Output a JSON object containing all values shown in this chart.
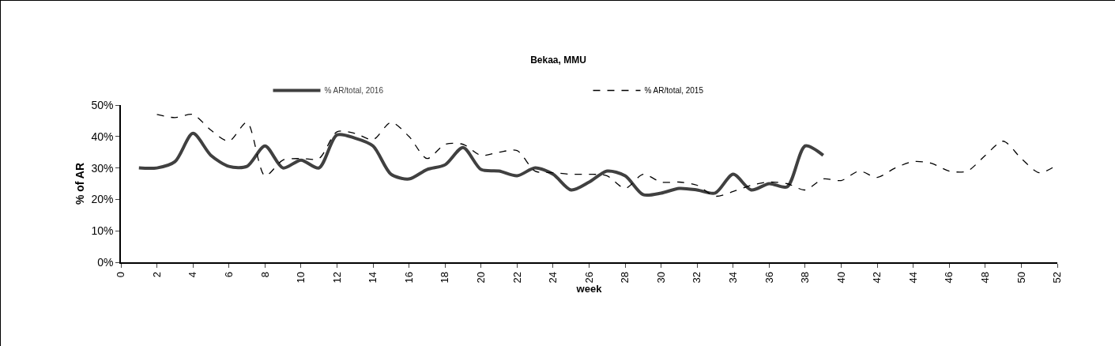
{
  "chart_data": {
    "type": "line",
    "title": "Bekaa, MMU",
    "xlabel": "week",
    "ylabel": "% of AR",
    "xlim": [
      0,
      52
    ],
    "xticks": [
      0,
      2,
      4,
      6,
      8,
      10,
      12,
      14,
      16,
      18,
      20,
      22,
      24,
      26,
      28,
      30,
      32,
      34,
      36,
      38,
      40,
      42,
      44,
      46,
      48,
      50,
      52
    ],
    "ylim": [
      0,
      50
    ],
    "yticks": [
      {
        "value": 0,
        "label": "0%"
      },
      {
        "value": 10,
        "label": "10%"
      },
      {
        "value": 20,
        "label": "20%"
      },
      {
        "value": 30,
        "label": "30%"
      },
      {
        "value": 40,
        "label": "40%"
      },
      {
        "value": 50,
        "label": "50%"
      }
    ],
    "grid": false,
    "legend": "top",
    "marker": "none",
    "series": [
      {
        "name": "% AR/total, 2016",
        "color": "#404040",
        "line_style": "solid",
        "x": [
          1,
          2,
          3,
          4,
          5,
          6,
          7,
          8,
          9,
          10,
          11,
          12,
          13,
          14,
          15,
          16,
          17,
          18,
          19,
          20,
          21,
          22,
          23,
          24,
          25,
          26,
          27,
          28,
          29,
          30,
          31,
          32,
          33,
          34,
          35,
          36,
          37,
          38,
          39
        ],
        "values": [
          30,
          30,
          32,
          41,
          34,
          30.5,
          30.5,
          37,
          30,
          32.5,
          30,
          40.5,
          39.5,
          37,
          28,
          26.5,
          29.5,
          31,
          36.5,
          29.5,
          29,
          27.5,
          30,
          28,
          23,
          25.5,
          29,
          27.5,
          21.5,
          22,
          23.5,
          23,
          22,
          28,
          23,
          25,
          24,
          37,
          34
        ]
      },
      {
        "name": "% AR/total, 2015",
        "color": "#000000",
        "line_style": "dashed",
        "x": [
          2,
          3,
          4,
          5,
          6,
          7,
          8,
          9,
          10,
          11,
          12,
          13,
          14,
          15,
          16,
          17,
          18,
          19,
          20,
          21,
          22,
          23,
          24,
          25,
          26,
          27,
          28,
          29,
          30,
          31,
          32,
          33,
          34,
          35,
          36,
          37,
          38,
          39,
          40,
          41,
          42,
          43,
          44,
          45,
          46,
          47,
          48,
          49,
          50,
          51,
          52
        ],
        "values": [
          47,
          46,
          47,
          42,
          38.5,
          44.5,
          27.5,
          32.5,
          33,
          33,
          41.5,
          41,
          39,
          44.5,
          40,
          33,
          37.5,
          37.5,
          34,
          35,
          35.5,
          29,
          28.5,
          28,
          28,
          27.5,
          23.5,
          28,
          25.5,
          25.5,
          24.5,
          21,
          22.5,
          24.5,
          25.5,
          25,
          23,
          26.5,
          26,
          29,
          27,
          30,
          32,
          31.5,
          29,
          29,
          34,
          38.5,
          33,
          28.5,
          31
        ]
      }
    ]
  }
}
